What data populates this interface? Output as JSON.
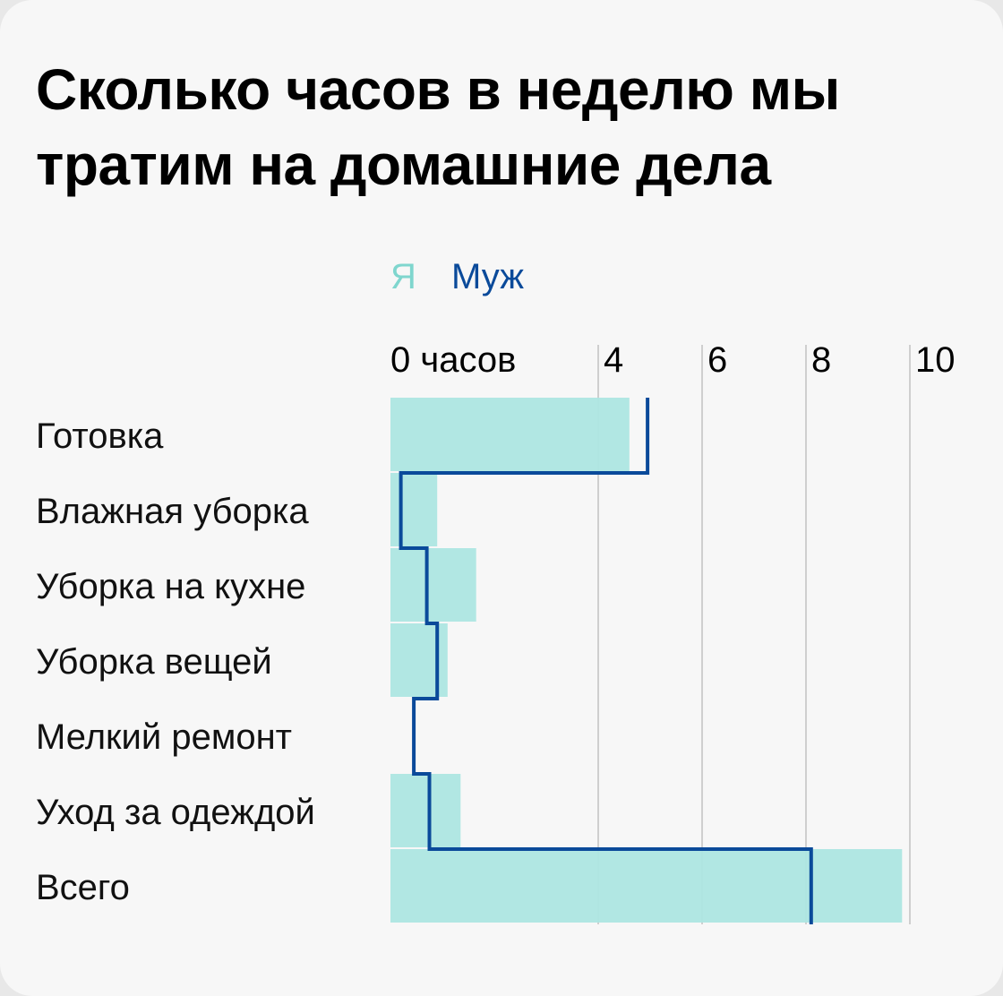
{
  "title": "Сколько часов в неделю мы тратим на домашние дела",
  "legend": {
    "me": "Я",
    "husband": "Муж"
  },
  "colors": {
    "me": "#ade6e2",
    "husband": "#0a4a9a",
    "legend_me": "#7fd6ce",
    "grid": "#cfcfcf"
  },
  "chart_data": {
    "type": "bar",
    "title": "Сколько часов в неделю мы тратим на домашние дела",
    "xlabel": "",
    "ylabel": "",
    "xlim": [
      0,
      10
    ],
    "ticks": [
      {
        "value": 0,
        "label": "0 часов"
      },
      {
        "value": 4,
        "label": "4"
      },
      {
        "value": 6,
        "label": "6"
      },
      {
        "value": 8,
        "label": "8"
      },
      {
        "value": 10,
        "label": "10"
      }
    ],
    "grid": true,
    "categories": [
      "Готовка",
      "Влажная уборка",
      "Уборка на кухне",
      "Уборка вещей",
      "Мелкий ремонт",
      "Уход за одеждой",
      "Всего"
    ],
    "series": [
      {
        "name": "Я",
        "style": "bar",
        "values": [
          4.6,
          0.9,
          1.65,
          1.1,
          0,
          1.35,
          9.85
        ]
      },
      {
        "name": "Муж",
        "style": "step-line",
        "values": [
          4.95,
          0.2,
          0.7,
          0.9,
          0.45,
          0.75,
          8.1
        ]
      }
    ]
  }
}
